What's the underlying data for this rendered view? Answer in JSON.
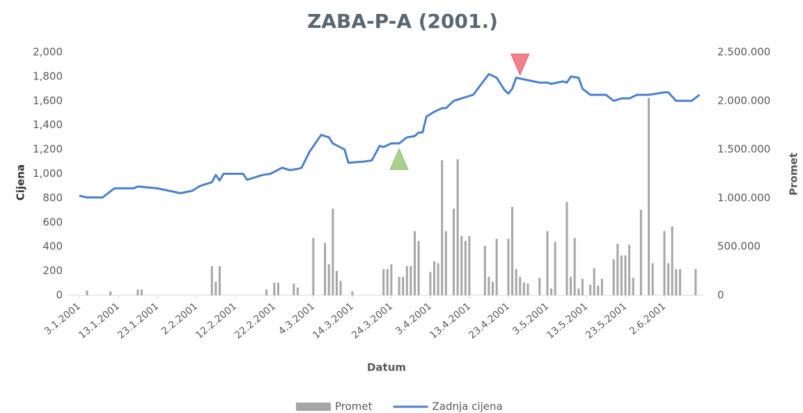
{
  "chart_data": {
    "type": "line-bar",
    "title": "ZABA-P-A (2001.)",
    "x_label": "Datum",
    "y_label": "Cijena",
    "y2_label": "Promet",
    "xlim": [
      -3,
      160
    ],
    "xticks": [
      {
        "value": 0,
        "label": "3.1.2001"
      },
      {
        "value": 10,
        "label": "13.1.2001"
      },
      {
        "value": 20,
        "label": "23.1.2001"
      },
      {
        "value": 30,
        "label": "2.2.2001"
      },
      {
        "value": 40,
        "label": "12.2.2001"
      },
      {
        "value": 50,
        "label": "22.2.2001"
      },
      {
        "value": 60,
        "label": "4.3.2001"
      },
      {
        "value": 70,
        "label": "14.3.2001"
      },
      {
        "value": 80,
        "label": "24.3.2001"
      },
      {
        "value": 90,
        "label": "3.4.2001"
      },
      {
        "value": 100,
        "label": "13.4.2001"
      },
      {
        "value": 110,
        "label": "23.4.2001"
      },
      {
        "value": 120,
        "label": "3.5.2001"
      },
      {
        "value": 130,
        "label": "13.5.2001"
      },
      {
        "value": 140,
        "label": "23.5.2001"
      },
      {
        "value": 150,
        "label": "2.6.2001"
      }
    ],
    "ylim": [
      0,
      2000
    ],
    "yticks": [
      0,
      200,
      400,
      600,
      800,
      {
        "value": 1000,
        "label": "1,000"
      },
      {
        "value": 1200,
        "label": "1,200"
      },
      {
        "value": 1400,
        "label": "1,400"
      },
      {
        "value": 1600,
        "label": "1,600"
      },
      {
        "value": 1800,
        "label": "1,800"
      },
      {
        "value": 2000,
        "label": "2,000"
      }
    ],
    "y2lim": [
      0,
      2500000
    ],
    "y2ticks": [
      0,
      {
        "value": 500000,
        "label": "500.000"
      },
      {
        "value": 1000000,
        "label": "1.000.000"
      },
      {
        "value": 1500000,
        "label": "1.500.000"
      },
      {
        "value": 2000000,
        "label": "2.000.000"
      },
      {
        "value": 2500000,
        "label": "2.500.000"
      }
    ],
    "legend": "bottom",
    "series": [
      {
        "name": "Promet",
        "type": "bar",
        "axis": "y2",
        "color": "#a6a6a6",
        "x": [
          2,
          8,
          15,
          16,
          34,
          35,
          36,
          48,
          50,
          51,
          55,
          56,
          60,
          63,
          64,
          65,
          66,
          67,
          70,
          78,
          79,
          80,
          82,
          83,
          84,
          85,
          86,
          87,
          90,
          91,
          92,
          93,
          94,
          96,
          97,
          98,
          99,
          100,
          104,
          105,
          106,
          107,
          110,
          111,
          112,
          113,
          114,
          115,
          118,
          120,
          121,
          122,
          125,
          126,
          127,
          128,
          129,
          131,
          132,
          133,
          134,
          137,
          138,
          139,
          140,
          141,
          142,
          144,
          146,
          147,
          150,
          151,
          152,
          153,
          154,
          158
        ],
        "values": [
          50000,
          40000,
          60000,
          60000,
          300000,
          140000,
          300000,
          60000,
          130000,
          130000,
          120000,
          80000,
          590000,
          540000,
          320000,
          890000,
          250000,
          150000,
          40000,
          270000,
          270000,
          320000,
          190000,
          190000,
          300000,
          300000,
          660000,
          560000,
          240000,
          350000,
          330000,
          1390000,
          660000,
          890000,
          1400000,
          610000,
          560000,
          610000,
          510000,
          190000,
          140000,
          580000,
          580000,
          910000,
          270000,
          190000,
          130000,
          120000,
          180000,
          660000,
          70000,
          550000,
          960000,
          190000,
          590000,
          70000,
          170000,
          110000,
          280000,
          100000,
          170000,
          370000,
          530000,
          410000,
          410000,
          520000,
          180000,
          880000,
          2030000,
          330000,
          660000,
          330000,
          710000,
          270000,
          270000,
          270000
        ]
      },
      {
        "name": "Zadnja cijena",
        "type": "line",
        "axis": "y",
        "color": "#4a7fcf",
        "x": [
          0,
          2,
          6,
          9,
          10,
          14,
          15,
          20,
          26,
          29,
          31,
          34,
          35,
          36,
          37,
          42,
          43,
          47,
          49,
          52,
          54,
          56,
          57,
          59,
          62,
          63,
          64,
          65,
          68,
          69,
          73,
          75,
          77,
          78,
          80,
          82,
          84,
          86,
          87,
          88,
          89,
          91,
          93,
          94,
          96,
          98,
          101,
          105,
          107,
          109,
          110,
          111,
          112,
          118,
          120,
          121,
          124,
          125,
          126,
          128,
          129,
          131,
          135,
          137,
          139,
          141,
          143,
          146,
          150,
          151,
          153,
          157,
          159
        ],
        "values": [
          820,
          805,
          805,
          880,
          880,
          880,
          895,
          880,
          840,
          860,
          900,
          930,
          990,
          945,
          1000,
          1000,
          950,
          990,
          1000,
          1050,
          1030,
          1040,
          1050,
          1180,
          1320,
          1310,
          1300,
          1250,
          1200,
          1090,
          1100,
          1110,
          1230,
          1220,
          1250,
          1250,
          1300,
          1310,
          1340,
          1340,
          1470,
          1510,
          1540,
          1540,
          1600,
          1620,
          1650,
          1820,
          1790,
          1690,
          1660,
          1700,
          1790,
          1750,
          1750,
          1740,
          1760,
          1750,
          1800,
          1790,
          1700,
          1650,
          1650,
          1600,
          1620,
          1620,
          1650,
          1650,
          1670,
          1670,
          1600,
          1600,
          1650
        ]
      }
    ],
    "signals": [
      {
        "direction": "up",
        "color": "#a9d18e",
        "x": 82,
        "y": 1120
      },
      {
        "direction": "down",
        "color": "#f4808c",
        "x": 113,
        "y": 1900
      }
    ]
  }
}
